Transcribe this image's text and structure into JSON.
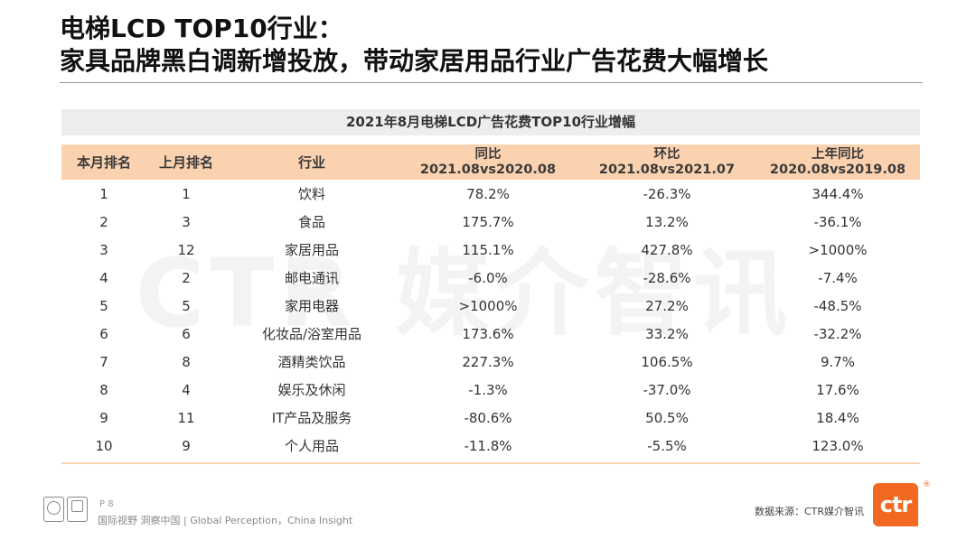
{
  "title": {
    "line1": "电梯LCD TOP10行业：",
    "line2": "家具品牌黑白调新增投放，带动家居用品行业广告花费大幅增长"
  },
  "watermark": "CTR 媒介智讯",
  "table": {
    "caption": "2021年8月电梯LCD广告花费TOP10行业增幅",
    "headers": {
      "current_rank": "本月排名",
      "last_rank": "上月排名",
      "industry": "行业",
      "yoy": {
        "label": "同比",
        "period": "2021.08vs2020.08"
      },
      "mom": {
        "label": "环比",
        "period": "2021.08vs2021.07"
      },
      "prev_yoy": {
        "label": "上年同比",
        "period": "2020.08vs2019.08"
      }
    },
    "rows": [
      {
        "current_rank": "1",
        "last_rank": "1",
        "industry": "饮料",
        "yoy": "78.2%",
        "mom": "-26.3%",
        "prev_yoy": "344.4%"
      },
      {
        "current_rank": "2",
        "last_rank": "3",
        "industry": "食品",
        "yoy": "175.7%",
        "mom": "13.2%",
        "prev_yoy": "-36.1%"
      },
      {
        "current_rank": "3",
        "last_rank": "12",
        "industry": "家居用品",
        "yoy": "115.1%",
        "mom": "427.8%",
        "prev_yoy": ">1000%"
      },
      {
        "current_rank": "4",
        "last_rank": "2",
        "industry": "邮电通讯",
        "yoy": "-6.0%",
        "mom": "-28.6%",
        "prev_yoy": "-7.4%"
      },
      {
        "current_rank": "5",
        "last_rank": "5",
        "industry": "家用电器",
        "yoy": ">1000%",
        "mom": "27.2%",
        "prev_yoy": "-48.5%"
      },
      {
        "current_rank": "6",
        "last_rank": "6",
        "industry": "化妆品/浴室用品",
        "yoy": "173.6%",
        "mom": "33.2%",
        "prev_yoy": "-32.2%"
      },
      {
        "current_rank": "7",
        "last_rank": "8",
        "industry": "酒精类饮品",
        "yoy": "227.3%",
        "mom": "106.5%",
        "prev_yoy": "9.7%"
      },
      {
        "current_rank": "8",
        "last_rank": "4",
        "industry": "娱乐及休闲",
        "yoy": "-1.3%",
        "mom": "-37.0%",
        "prev_yoy": "17.6%"
      },
      {
        "current_rank": "9",
        "last_rank": "11",
        "industry": "IT产品及服务",
        "yoy": "-80.6%",
        "mom": "50.5%",
        "prev_yoy": "18.4%"
      },
      {
        "current_rank": "10",
        "last_rank": "9",
        "industry": "个人用品",
        "yoy": "-11.8%",
        "mom": "-5.5%",
        "prev_yoy": "123.0%"
      }
    ]
  },
  "footer": {
    "page": "P 8",
    "tagline": "国际视野  洞察中国 | Global Perception，China Insight",
    "source": "数据来源：CTR媒介智讯",
    "logo_text": "ctr",
    "logo_mark": "®",
    "accent_color": "#f26a21"
  }
}
